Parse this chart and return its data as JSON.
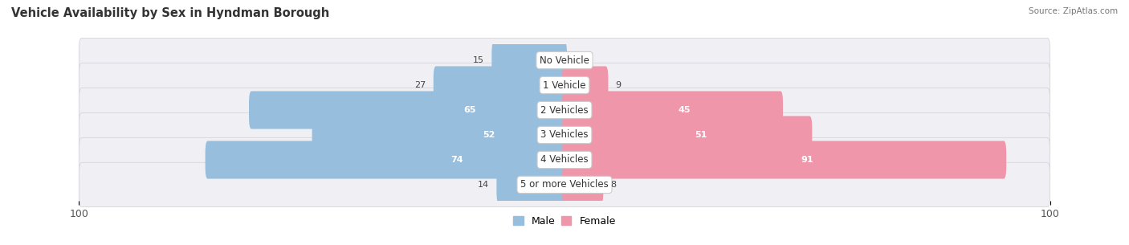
{
  "title": "Vehicle Availability by Sex in Hyndman Borough",
  "source": "Source: ZipAtlas.com",
  "categories": [
    "No Vehicle",
    "1 Vehicle",
    "2 Vehicles",
    "3 Vehicles",
    "4 Vehicles",
    "5 or more Vehicles"
  ],
  "male_values": [
    15,
    27,
    65,
    52,
    74,
    14
  ],
  "female_values": [
    0,
    9,
    45,
    51,
    91,
    8
  ],
  "male_color": "#97bedd",
  "female_color": "#ef96aa",
  "male_color_light": "#b8d4eb",
  "female_color_light": "#f5b8c4",
  "row_bg_color": "#f0f0f4",
  "row_border_color": "#d8d8e0",
  "axis_max": 100,
  "fig_width": 14.06,
  "fig_height": 3.05,
  "legend_male_label": "Male",
  "legend_female_label": "Female",
  "title_fontsize": 10.5,
  "label_fontsize": 8.5,
  "value_fontsize": 8.0,
  "axis_fontsize": 9.0
}
